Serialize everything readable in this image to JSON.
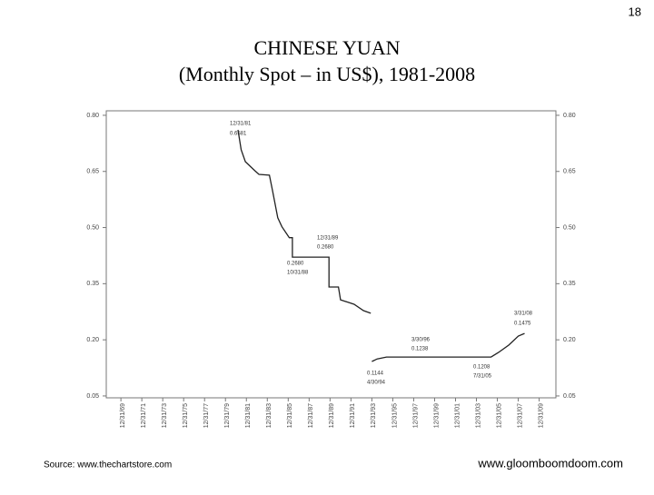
{
  "page_number": "18",
  "source": "Source: www.thechartstore.com",
  "website": "www.gloomboomdoom.com",
  "chart_data": {
    "type": "line",
    "title": "CHINESE  YUAN",
    "subtitle": "(Monthly  Spot – in US$), 1981-2008",
    "x": [
      1981.2,
      1981.5,
      1981.9,
      1982.8,
      1983.2,
      1984.2,
      1984.5,
      1985.0,
      1985.4,
      1986.1,
      1986.4,
      1986.4,
      1989.9,
      1989.9,
      1990.8,
      1991.0,
      1992.3,
      1993.2,
      1993.9,
      1993.95,
      1994.0,
      1994.5,
      1995.4,
      1996.7,
      2005.4,
      2006.1,
      2007.1,
      2008.0,
      2008.6
    ],
    "series": [
      {
        "color": "#222222",
        "values": [
          0.761,
          0.708,
          0.676,
          0.652,
          0.642,
          0.64,
          0.599,
          0.526,
          0.502,
          0.473,
          0.473,
          0.421,
          0.421,
          0.341,
          0.341,
          0.307,
          0.295,
          0.278,
          0.271,
          null,
          0.142,
          0.149,
          0.154,
          0.154,
          0.154,
          0.166,
          0.186,
          0.21,
          0.217
        ]
      }
    ],
    "xlim": [
      1968.6,
      2011.6
    ],
    "ylim": [
      0.045,
      0.812
    ],
    "xticks": [
      {
        "value": 1970,
        "label": "12/31/69"
      },
      {
        "value": 1972,
        "label": "12/31/71"
      },
      {
        "value": 1974,
        "label": "12/31/73"
      },
      {
        "value": 1976,
        "label": "12/31/75"
      },
      {
        "value": 1978,
        "label": "12/31/77"
      },
      {
        "value": 1980,
        "label": "12/31/79"
      },
      {
        "value": 1982,
        "label": "12/31/81"
      },
      {
        "value": 1984,
        "label": "12/31/83"
      },
      {
        "value": 1986,
        "label": "12/31/85"
      },
      {
        "value": 1988,
        "label": "12/31/87"
      },
      {
        "value": 1990,
        "label": "12/31/89"
      },
      {
        "value": 1992,
        "label": "12/31/91"
      },
      {
        "value": 1994,
        "label": "12/31/93"
      },
      {
        "value": 1996,
        "label": "12/31/95"
      },
      {
        "value": 1998,
        "label": "12/31/97"
      },
      {
        "value": 2000,
        "label": "12/31/99"
      },
      {
        "value": 2002,
        "label": "12/31/01"
      },
      {
        "value": 2004,
        "label": "12/31/03"
      },
      {
        "value": 2006,
        "label": "12/31/05"
      },
      {
        "value": 2008,
        "label": "12/31/07"
      },
      {
        "value": 2010,
        "label": "12/31/09"
      }
    ],
    "yticks": [
      {
        "value": 0.05,
        "label": "0.05"
      },
      {
        "value": 0.2,
        "label": "0.20"
      },
      {
        "value": 0.35,
        "label": "0.35"
      },
      {
        "value": 0.5,
        "label": "0.50"
      },
      {
        "value": 0.65,
        "label": "0.65"
      },
      {
        "value": 0.8,
        "label": "0.80"
      }
    ],
    "grid": false,
    "annotations": [
      "12/31/81",
      "0.6581",
      "12/31/89",
      "0.2680",
      "0.2680",
      "10/31/88",
      "3/30/96",
      "0.1238",
      "0.1144",
      "4/30/94",
      "0.1208",
      "7/31/05",
      "3/31/08",
      "0.1475"
    ]
  }
}
